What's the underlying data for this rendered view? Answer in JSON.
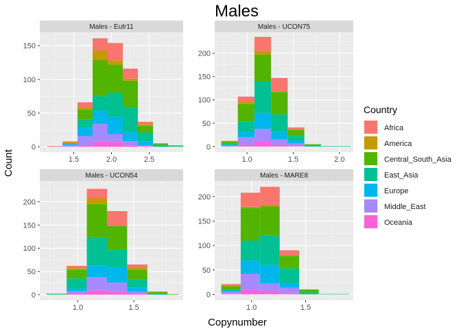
{
  "chart_data": {
    "type": "bar",
    "stacked": true,
    "title": "Males",
    "xlabel": "Copynumber",
    "ylabel": "Count",
    "legend": {
      "title": "Country",
      "placement": "right",
      "entries": [
        "Africa",
        "America",
        "Central_South_Asia",
        "East_Asia",
        "Europe",
        "Middle_East",
        "Oceania"
      ]
    },
    "colors": {
      "Africa": "#F8766D",
      "America": "#C49A00",
      "Central_South_Asia": "#53B400",
      "East_Asia": "#00C094",
      "Europe": "#00B6EB",
      "Middle_East": "#A58AFF",
      "Oceania": "#FB61D7"
    },
    "panels": [
      {
        "title": "Males - Eutr11",
        "xlim": [
          1.05,
          2.95
        ],
        "ylim": [
          -8,
          170
        ],
        "xticks": [
          1.5,
          2.0,
          2.5
        ],
        "xtick_labels": [
          "1.5",
          "2.0",
          "2.5"
        ],
        "yticks": [
          0,
          50,
          100,
          150
        ],
        "ytick_labels": [
          "0",
          "50",
          "100",
          "150"
        ],
        "bins": [
          {
            "x0": 1.15,
            "x1": 1.35,
            "Africa": 1,
            "America": 0,
            "Central_South_Asia": 0,
            "East_Asia": 0,
            "Europe": 0,
            "Middle_East": 0,
            "Oceania": 0
          },
          {
            "x0": 1.35,
            "x1": 1.55,
            "Africa": 1,
            "America": 2,
            "Central_South_Asia": 0,
            "East_Asia": 0,
            "Europe": 2,
            "Middle_East": 3,
            "Oceania": 0
          },
          {
            "x0": 1.55,
            "x1": 1.75,
            "Africa": 8,
            "America": 3,
            "Central_South_Asia": 15,
            "East_Asia": 12,
            "Europe": 12,
            "Middle_East": 14,
            "Oceania": 2
          },
          {
            "x0": 1.75,
            "x1": 1.95,
            "Africa": 18,
            "America": 14,
            "Central_South_Asia": 54,
            "East_Asia": 21,
            "Europe": 20,
            "Middle_East": 26,
            "Oceania": 8
          },
          {
            "x0": 1.95,
            "x1": 2.15,
            "Africa": 26,
            "America": 6,
            "Central_South_Asia": 42,
            "East_Asia": 36,
            "Europe": 25,
            "Middle_East": 12,
            "Oceania": 7
          },
          {
            "x0": 2.15,
            "x1": 2.35,
            "Africa": 15,
            "America": 3,
            "Central_South_Asia": 39,
            "East_Asia": 37,
            "Europe": 14,
            "Middle_East": 6,
            "Oceania": 2
          },
          {
            "x0": 2.35,
            "x1": 2.55,
            "Africa": 4,
            "America": 2,
            "Central_South_Asia": 10,
            "East_Asia": 13,
            "Europe": 6,
            "Middle_East": 1,
            "Oceania": 1
          },
          {
            "x0": 2.55,
            "x1": 2.75,
            "Africa": 0,
            "America": 0,
            "Central_South_Asia": 2,
            "East_Asia": 3,
            "Europe": 0,
            "Middle_East": 0,
            "Oceania": 0
          },
          {
            "x0": 2.75,
            "x1": 2.95,
            "Africa": 0,
            "America": 0,
            "Central_South_Asia": 1,
            "East_Asia": 1,
            "Europe": 0,
            "Middle_East": 0,
            "Oceania": 0
          }
        ]
      },
      {
        "title": "Males - UCON75",
        "xlim": [
          0.65,
          2.15
        ],
        "ylim": [
          -12,
          245
        ],
        "xticks": [
          1.0,
          1.5,
          2.0
        ],
        "xtick_labels": [
          "1.0",
          "1.5",
          "2.0"
        ],
        "yticks": [
          0,
          50,
          100,
          150,
          200
        ],
        "ytick_labels": [
          "0",
          "50",
          "100",
          "150",
          "200"
        ],
        "bins": [
          {
            "x0": 0.72,
            "x1": 0.9,
            "Africa": 0,
            "America": 1,
            "Central_South_Asia": 5,
            "East_Asia": 3,
            "Europe": 1,
            "Middle_East": 2,
            "Oceania": 0
          },
          {
            "x0": 0.9,
            "x1": 1.08,
            "Africa": 11,
            "America": 5,
            "Central_South_Asia": 38,
            "East_Asia": 21,
            "Europe": 12,
            "Middle_East": 16,
            "Oceania": 4
          },
          {
            "x0": 1.08,
            "x1": 1.26,
            "Africa": 30,
            "America": 8,
            "Central_South_Asia": 57,
            "East_Asia": 68,
            "Europe": 34,
            "Middle_East": 28,
            "Oceania": 10
          },
          {
            "x0": 1.26,
            "x1": 1.44,
            "Africa": 30,
            "America": 0,
            "Central_South_Asia": 48,
            "East_Asia": 38,
            "Europe": 16,
            "Middle_East": 11,
            "Oceania": 4
          },
          {
            "x0": 1.44,
            "x1": 1.62,
            "Africa": 4,
            "America": 1,
            "Central_South_Asia": 13,
            "East_Asia": 10,
            "Europe": 6,
            "Middle_East": 6,
            "Oceania": 1
          },
          {
            "x0": 1.62,
            "x1": 1.8,
            "Africa": 0,
            "America": 0,
            "Central_South_Asia": 2,
            "East_Asia": 3,
            "Europe": 0,
            "Middle_East": 0,
            "Oceania": 0
          },
          {
            "x0": 1.8,
            "x1": 1.98,
            "Africa": 0,
            "America": 0,
            "Central_South_Asia": 0,
            "East_Asia": 1,
            "Europe": 0,
            "Middle_East": 0,
            "Oceania": 0
          },
          {
            "x0": 1.98,
            "x1": 2.12,
            "Africa": 0,
            "America": 0,
            "Central_South_Asia": 0,
            "East_Asia": 1,
            "Europe": 0,
            "Middle_East": 0,
            "Oceania": 0
          }
        ]
      },
      {
        "title": "Males - UCON54",
        "xlim": [
          0.66,
          1.94
        ],
        "ylim": [
          -12,
          245
        ],
        "xticks": [
          1.0,
          1.5
        ],
        "xtick_labels": [
          "1.0",
          "1.5"
        ],
        "yticks": [
          0,
          50,
          100,
          150,
          200
        ],
        "ytick_labels": [
          "0",
          "50",
          "100",
          "150",
          "200"
        ],
        "bins": [
          {
            "x0": 0.72,
            "x1": 0.9,
            "Africa": 0,
            "America": 0,
            "Central_South_Asia": 1,
            "East_Asia": 1,
            "Europe": 0,
            "Middle_East": 0,
            "Oceania": 0
          },
          {
            "x0": 0.9,
            "x1": 1.08,
            "Africa": 5,
            "America": 3,
            "Central_South_Asia": 19,
            "East_Asia": 22,
            "Europe": 6,
            "Middle_East": 5,
            "Oceania": 2
          },
          {
            "x0": 1.08,
            "x1": 1.26,
            "Africa": 20,
            "America": 13,
            "Central_South_Asia": 72,
            "East_Asia": 60,
            "Europe": 25,
            "Middle_East": 29,
            "Oceania": 9
          },
          {
            "x0": 1.26,
            "x1": 1.44,
            "Africa": 32,
            "America": 0,
            "Central_South_Asia": 52,
            "East_Asia": 37,
            "Europe": 33,
            "Middle_East": 20,
            "Oceania": 6
          },
          {
            "x0": 1.44,
            "x1": 1.62,
            "Africa": 7,
            "America": 4,
            "Central_South_Asia": 22,
            "East_Asia": 17,
            "Europe": 9,
            "Middle_East": 4,
            "Oceania": 2
          },
          {
            "x0": 1.62,
            "x1": 1.8,
            "Africa": 1,
            "America": 1,
            "Central_South_Asia": 2,
            "East_Asia": 3,
            "Europe": 0,
            "Middle_East": 0,
            "Oceania": 0
          },
          {
            "x0": 1.8,
            "x1": 1.9,
            "Africa": 0,
            "America": 0,
            "Central_South_Asia": 1,
            "East_Asia": 0,
            "Europe": 0,
            "Middle_East": 0,
            "Oceania": 0
          }
        ]
      },
      {
        "title": "Males - MARE8",
        "xlim": [
          0.66,
          1.94
        ],
        "ylim": [
          -12,
          232
        ],
        "xticks": [
          1.0,
          1.5
        ],
        "xtick_labels": [
          "1.0",
          "1.5"
        ],
        "yticks": [
          0,
          50,
          100,
          150,
          200
        ],
        "ytick_labels": [
          "0",
          "50",
          "100",
          "150",
          "200"
        ],
        "bins": [
          {
            "x0": 0.72,
            "x1": 0.9,
            "Africa": 3,
            "America": 2,
            "Central_South_Asia": 6,
            "East_Asia": 3,
            "Europe": 2,
            "Middle_East": 4,
            "Oceania": 1
          },
          {
            "x0": 0.9,
            "x1": 1.08,
            "Africa": 29,
            "America": 2,
            "Central_South_Asia": 67,
            "East_Asia": 41,
            "Europe": 27,
            "Middle_East": 33,
            "Oceania": 9
          },
          {
            "x0": 1.08,
            "x1": 1.26,
            "Africa": 37,
            "America": 3,
            "Central_South_Asia": 60,
            "East_Asia": 60,
            "Europe": 38,
            "Middle_East": 15,
            "Oceania": 7
          },
          {
            "x0": 1.26,
            "x1": 1.44,
            "Africa": 11,
            "America": 0,
            "Central_South_Asia": 26,
            "East_Asia": 30,
            "Europe": 9,
            "Middle_East": 11,
            "Oceania": 3
          },
          {
            "x0": 1.44,
            "x1": 1.62,
            "Africa": 0,
            "America": 0,
            "Central_South_Asia": 6,
            "East_Asia": 4,
            "Europe": 0,
            "Middle_East": 0,
            "Oceania": 0
          },
          {
            "x0": 1.62,
            "x1": 1.8,
            "Africa": 0,
            "America": 0,
            "Central_South_Asia": 0,
            "East_Asia": 1,
            "Europe": 0,
            "Middle_East": 0,
            "Oceania": 0
          },
          {
            "x0": 1.8,
            "x1": 1.9,
            "Africa": 0,
            "America": 0,
            "Central_South_Asia": 0,
            "East_Asia": 1,
            "Europe": 0,
            "Middle_East": 0,
            "Oceania": 0
          }
        ]
      }
    ]
  }
}
